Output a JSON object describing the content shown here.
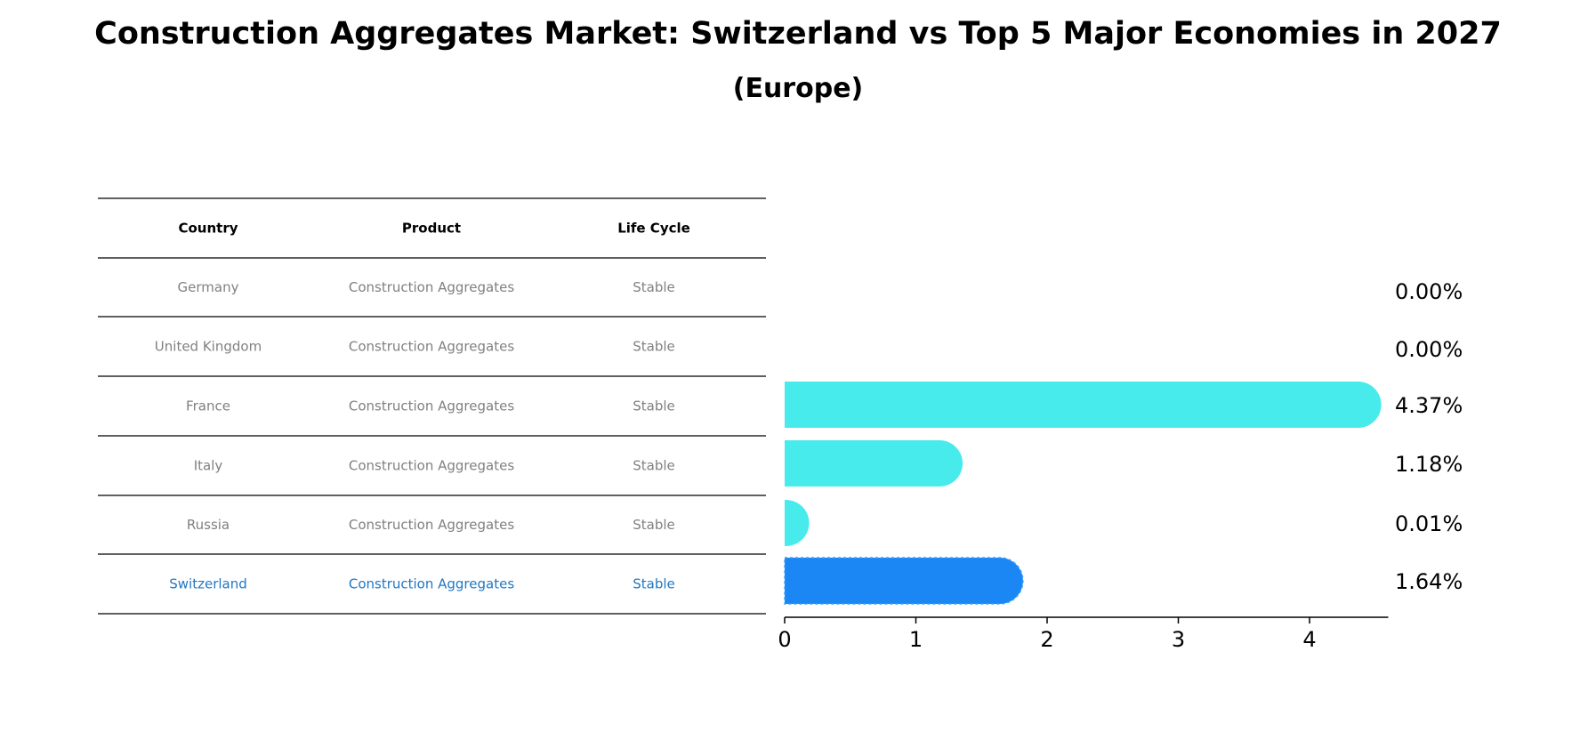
{
  "title": "Construction Aggregates Market: Switzerland vs Top 5 Major Economies in 2027",
  "subtitle": "(Europe)",
  "colors": {
    "highlight": "#1a87f5",
    "bar": "#48ebeb",
    "muted_text": "#808080",
    "highlight_text": "#1f77c4"
  },
  "table": {
    "headers": [
      "Country",
      "Product",
      "Life Cycle"
    ],
    "rows": [
      {
        "country": "Germany",
        "product": "Construction Aggregates",
        "life_cycle": "Stable",
        "highlight": false
      },
      {
        "country": "United Kingdom",
        "product": "Construction Aggregates",
        "life_cycle": "Stable",
        "highlight": false
      },
      {
        "country": "France",
        "product": "Construction Aggregates",
        "life_cycle": "Stable",
        "highlight": false
      },
      {
        "country": "Italy",
        "product": "Construction Aggregates",
        "life_cycle": "Stable",
        "highlight": false
      },
      {
        "country": "Russia",
        "product": "Construction Aggregates",
        "life_cycle": "Stable",
        "highlight": false
      },
      {
        "country": "Switzerland",
        "product": "Construction Aggregates",
        "life_cycle": "Stable",
        "highlight": true
      }
    ]
  },
  "chart_data": {
    "type": "bar",
    "orientation": "horizontal",
    "categories": [
      "Germany",
      "United Kingdom",
      "France",
      "Italy",
      "Russia",
      "Switzerland"
    ],
    "values": [
      0.0,
      0.0,
      4.37,
      1.18,
      0.01,
      1.64
    ],
    "value_labels": [
      "0.00%",
      "0.00%",
      "4.37%",
      "1.18%",
      "0.01%",
      "1.64%"
    ],
    "highlight_index": 5,
    "xlim": [
      0,
      4.6
    ],
    "xticks": [
      0,
      1,
      2,
      3,
      4
    ],
    "xlabel": "",
    "ylabel": "",
    "grid": false
  }
}
